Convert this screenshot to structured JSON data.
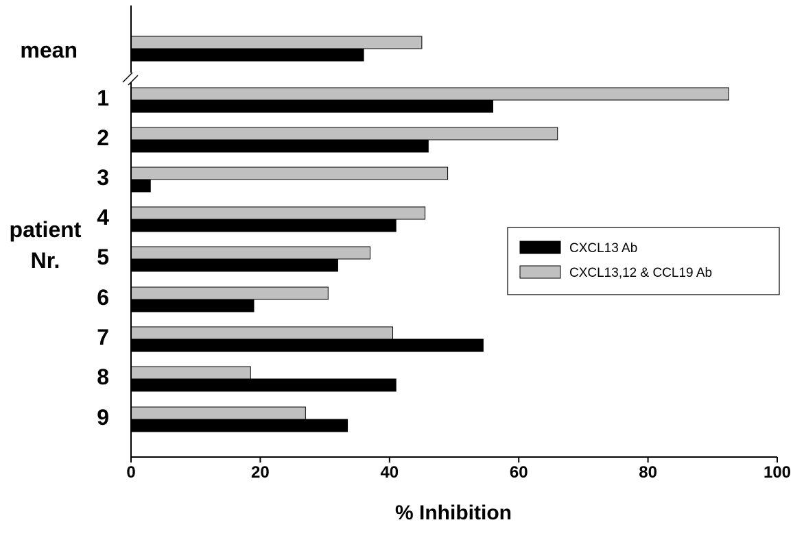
{
  "chart_data": {
    "type": "bar",
    "orientation": "horizontal",
    "categories": [
      "mean",
      "1",
      "2",
      "3",
      "4",
      "5",
      "6",
      "7",
      "8",
      "9"
    ],
    "series": [
      {
        "name": "CXCL13 Ab",
        "color": "#000000",
        "values": [
          36,
          56,
          46,
          3,
          41,
          32,
          19,
          54.5,
          41,
          33.5
        ]
      },
      {
        "name": "CXCL13,12 & CCL19 Ab",
        "color": "#c0c0c0",
        "values": [
          45,
          92.5,
          66,
          49,
          45.5,
          37,
          30.5,
          40.5,
          18.5,
          27
        ]
      }
    ],
    "xlabel": "% Inhibition",
    "ylabel": [
      "patient",
      "Nr."
    ],
    "xlim": [
      0,
      100
    ],
    "xticks": [
      "0",
      "20",
      "40",
      "60",
      "80",
      "100"
    ],
    "axis_break_after": "mean",
    "legend_position": "right"
  }
}
